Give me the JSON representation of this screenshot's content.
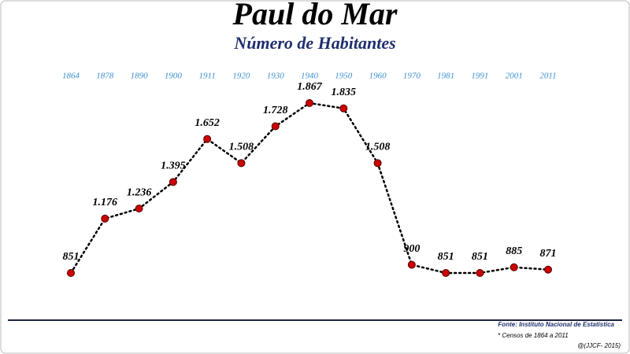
{
  "chart_data": {
    "type": "line",
    "title": "Paul do Mar",
    "subtitle": "Número de Habitantes",
    "categories": [
      "1864",
      "1878",
      "1890",
      "1900",
      "1911",
      "1920",
      "1930",
      "1940",
      "1950",
      "1960",
      "1970",
      "1981",
      "1991",
      "2001",
      "2011"
    ],
    "values": [
      851,
      1176,
      1236,
      1395,
      1652,
      1508,
      1728,
      1867,
      1835,
      1508,
      900,
      851,
      851,
      885,
      871
    ],
    "value_labels": [
      "851",
      "1.176",
      "1.236",
      "1.395",
      "1.652",
      "1.508",
      "1.728",
      "1.867",
      "1.835",
      "1.508",
      "900",
      "851",
      "851",
      "885",
      "871"
    ],
    "color": "#cc0000",
    "source": "Fonte: Instituto Nacional de Estatística",
    "note": "* Censos de 1864 a 2011",
    "credit": "@(JJCF- 2015)"
  }
}
